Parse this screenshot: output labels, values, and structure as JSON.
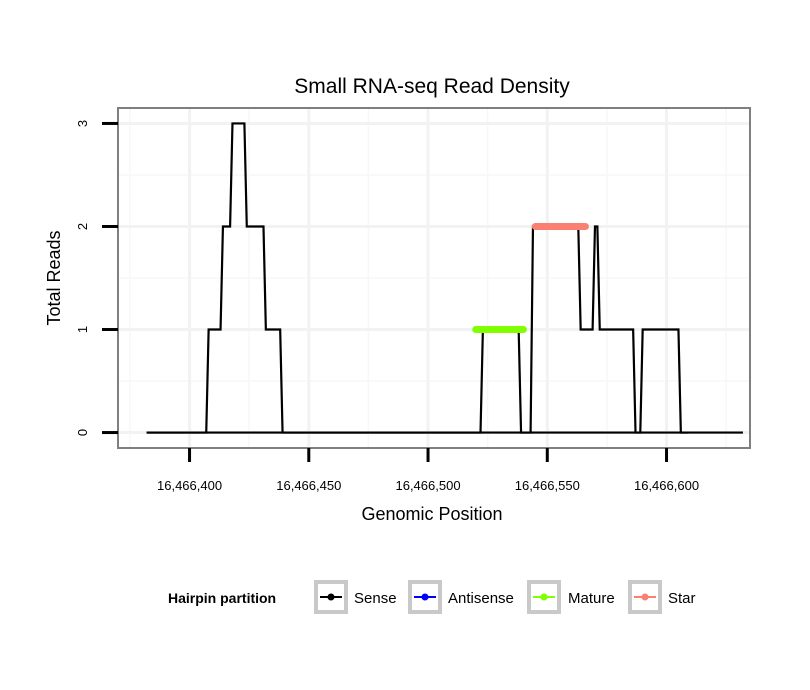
{
  "chart_data": {
    "type": "line",
    "title": "Small RNA-seq Read Density",
    "xlabel": "Genomic Position",
    "ylabel": "Total Reads",
    "xlim": [
      16466370,
      16466635
    ],
    "ylim": [
      -0.15,
      3.15
    ],
    "xticks": [
      16466400,
      16466450,
      16466500,
      16466550,
      16466600
    ],
    "xtick_labels": [
      "16,466,400",
      "16,466,450",
      "16,466,500",
      "16,466,550",
      "16,466,600"
    ],
    "yticks": [
      0,
      1,
      2,
      3
    ],
    "ytick_labels": [
      "0",
      "1",
      "2",
      "3"
    ],
    "grid": true,
    "legend": {
      "title": "Hairpin partition",
      "position": "bottom",
      "entries": [
        "Sense",
        "Antisense",
        "Mature",
        "Star"
      ]
    },
    "series": [
      {
        "name": "Sense",
        "color": "#000000",
        "x": [
          16466382,
          16466407,
          16466408,
          16466413,
          16466414,
          16466417,
          16466418,
          16466423,
          16466424,
          16466431,
          16466432,
          16466438,
          16466439,
          16466622,
          16466623,
          16466632
        ],
        "y": [
          0,
          0,
          1,
          1,
          2,
          2,
          3,
          3,
          2,
          2,
          1,
          1,
          0,
          0,
          0,
          0
        ]
      },
      {
        "name": "Sense",
        "color": "#000000",
        "x": [
          16466382,
          16466522,
          16466523,
          16466538,
          16466539,
          16466543,
          16466544,
          16466563,
          16466564,
          16466569,
          16466570,
          16466571,
          16466572,
          16466586,
          16466587,
          16466589,
          16466590,
          16466605,
          16466606,
          16466609
        ],
        "y": [
          0,
          0,
          1,
          1,
          0,
          0,
          2,
          2,
          1,
          1,
          2,
          2,
          1,
          1,
          0,
          0,
          1,
          1,
          0,
          0
        ]
      },
      {
        "name": "Antisense",
        "color": "#0000ff",
        "x": [
          16466408,
          16466632
        ],
        "y": [
          0,
          0
        ]
      },
      {
        "name": "Mature",
        "color": "#7fff00",
        "x": [
          16466520,
          16466540
        ],
        "y": [
          1,
          1
        ]
      },
      {
        "name": "Star",
        "color": "#fa8072",
        "x": [
          16466545,
          16466566
        ],
        "y": [
          2,
          2
        ]
      }
    ]
  }
}
